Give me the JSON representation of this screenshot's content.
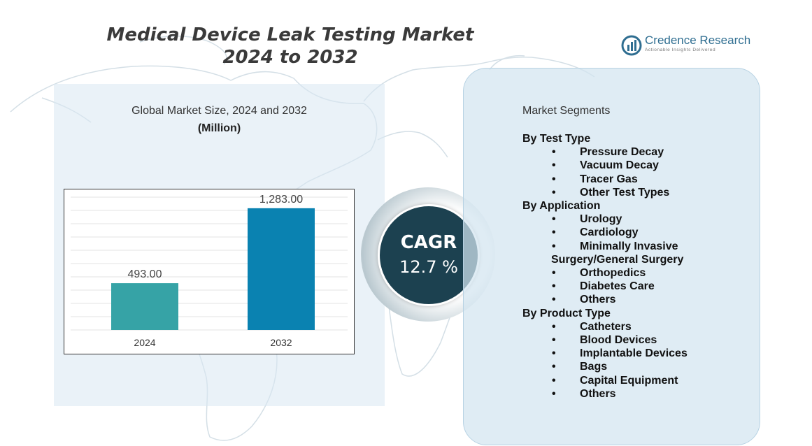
{
  "title": {
    "line1": "Medical Device Leak Testing Market",
    "line2": "2024 to 2032"
  },
  "logo": {
    "name": "Credence Research",
    "tagline": "Actionable Insights Delivered"
  },
  "chart_data": {
    "type": "bar",
    "title": "Global Market Size,  2024 and 2032",
    "unit": "(Million)",
    "categories": [
      "2024",
      "2032"
    ],
    "values": [
      493.0,
      1283.0
    ],
    "value_labels": [
      "493.00",
      "1,283.00"
    ],
    "colors": [
      "#36a3a6",
      "#0a82b1"
    ],
    "ylim": [
      0,
      1400
    ],
    "grid": true,
    "legend": "none"
  },
  "cagr": {
    "label": "CAGR",
    "value": "12.7 %"
  },
  "segments": {
    "heading": "Market Segments",
    "bullet": "•",
    "groups": [
      {
        "name": "By Test Type",
        "items": [
          "Pressure Decay",
          "Vacuum Decay",
          "Tracer Gas",
          "Other Test Types"
        ]
      },
      {
        "name": "By Application",
        "items": [
          "Urology",
          "Cardiology",
          "Minimally Invasive",
          "Orthopedics",
          "Diabetes Care",
          "Others"
        ],
        "continuation": {
          "after": 2,
          "text": "Surgery/General Surgery"
        }
      },
      {
        "name": "By Product Type",
        "items": [
          "Catheters",
          "Blood Devices",
          "Implantable Devices",
          "Bags",
          "Capital Equipment",
          "Others"
        ]
      }
    ]
  }
}
